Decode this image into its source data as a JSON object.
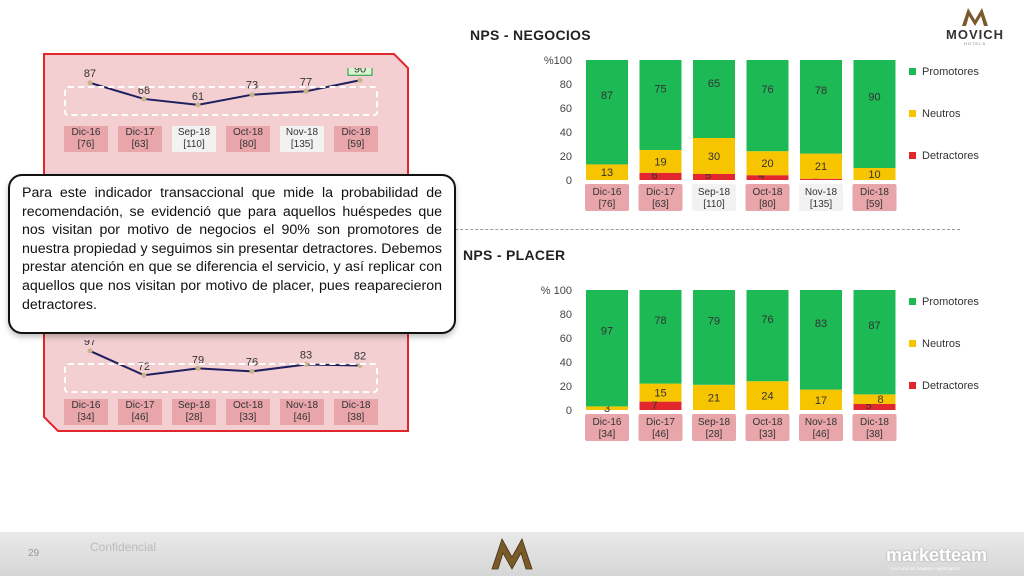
{
  "brand": {
    "name": "MOVICH",
    "sub": "HOTELS",
    "logo_lettering": "MM"
  },
  "negocios": {
    "title": "NPS - NEGOCIOS",
    "line": [
      87,
      68,
      61,
      73,
      77,
      90
    ],
    "periods": [
      {
        "label": "Dic-16",
        "n": "[76]"
      },
      {
        "label": "Dic-17",
        "n": "[63]"
      },
      {
        "label": "Sep-18",
        "n": "[110]"
      },
      {
        "label": "Oct-18",
        "n": "[80]"
      },
      {
        "label": "Nov-18",
        "n": "[135]"
      },
      {
        "label": "Dic-18",
        "n": "[59]"
      }
    ],
    "highlight": [
      true,
      true,
      false,
      true,
      false,
      true
    ]
  },
  "placer": {
    "title": "NPS - PLACER",
    "line": [
      97,
      72,
      79,
      76,
      83,
      82
    ],
    "periods": [
      {
        "label": "Dic-16",
        "n": "[34]"
      },
      {
        "label": "Dic-17",
        "n": "[46]"
      },
      {
        "label": "Sep-18",
        "n": "[28]"
      },
      {
        "label": "Oct-18",
        "n": "[33]"
      },
      {
        "label": "Nov-18",
        "n": "[46]"
      },
      {
        "label": "Dic-18",
        "n": "[38]"
      }
    ],
    "highlight": [
      true,
      true,
      true,
      true,
      true,
      true
    ]
  },
  "note": "Para este indicador transaccional que mide la probabilidad de recomendación, se evidenció que para aquellos huéspedes que nos visitan por motivo de negocios el 90% son promotores de nuestra propiedad y seguimos sin presentar detractores. Debemos prestar atención en que se diferencia el servicio, y así replicar con aquellos que nos visitan por motivo de placer, pues reaparecieron detractores.",
  "footer": {
    "page": "29",
    "confidential": "Confidencial",
    "brand": "marketteam",
    "brand_sub": "CULTURA DE CAMBIO Y MERCADEO"
  },
  "colors": {
    "promotores": "#1db954",
    "neutros": "#f7c500",
    "detractores": "#e2262e"
  },
  "chart_data": [
    {
      "type": "bar",
      "stacked": true,
      "title": "NPS - NEGOCIOS",
      "ylabel": "%",
      "ylim": [
        0,
        100
      ],
      "yticks": [
        "0",
        "20",
        "40",
        "60",
        "80",
        "100"
      ],
      "categories": [
        "Dic-16",
        "Dic-17",
        "Sep-18",
        "Oct-18",
        "Nov-18",
        "Dic-18"
      ],
      "series": [
        {
          "name": "Detractores",
          "values": [
            0,
            6,
            5,
            4,
            1,
            0
          ],
          "labels": [
            "",
            "6",
            "5",
            "4",
            "1",
            ""
          ]
        },
        {
          "name": "Neutros",
          "values": [
            13,
            19,
            30,
            20,
            21,
            10
          ],
          "labels": [
            "13",
            "19",
            "30",
            "20",
            "21",
            "10"
          ]
        },
        {
          "name": "Promotores",
          "values": [
            87,
            75,
            65,
            76,
            78,
            90
          ],
          "labels": [
            "87",
            "75",
            "65",
            "76",
            "78",
            "90"
          ]
        }
      ]
    },
    {
      "type": "bar",
      "stacked": true,
      "title": "NPS - PLACER",
      "ylabel": "%",
      "ylim": [
        0,
        100
      ],
      "yticks": [
        "0",
        "20",
        "40",
        "60",
        "80",
        "100"
      ],
      "categories": [
        "Dic-16",
        "Dic-17",
        "Sep-18",
        "Oct-18",
        "Nov-18",
        "Dic-18"
      ],
      "series": [
        {
          "name": "Detractores",
          "values": [
            0,
            7,
            0,
            0,
            0,
            5
          ],
          "labels": [
            "",
            "7",
            "",
            "",
            "",
            "5"
          ]
        },
        {
          "name": "Neutros",
          "values": [
            3,
            15,
            21,
            24,
            17,
            8
          ],
          "labels": [
            "3",
            "15",
            "21",
            "24",
            "17",
            "8"
          ]
        },
        {
          "name": "Promotores",
          "values": [
            97,
            78,
            79,
            76,
            83,
            87
          ],
          "labels": [
            "97",
            "78",
            "79",
            "76",
            "83",
            "87"
          ]
        }
      ]
    }
  ]
}
